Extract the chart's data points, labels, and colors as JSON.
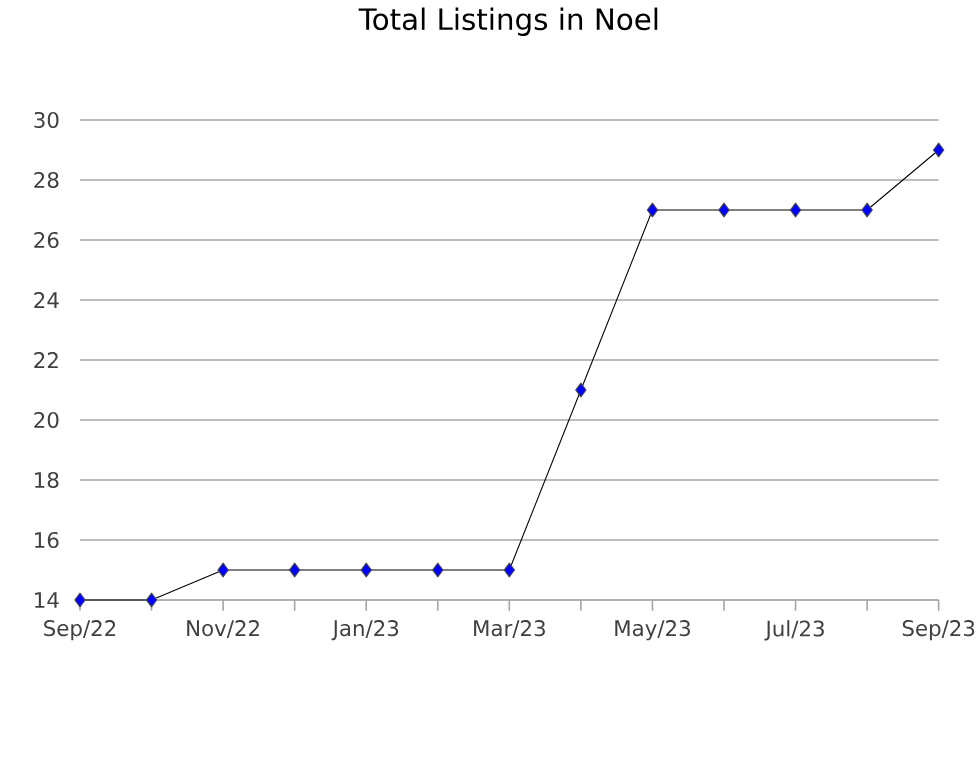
{
  "chart_data": {
    "type": "line",
    "title": "Total Listings in Noel",
    "x": [
      "2022-09",
      "2022-10",
      "2022-11",
      "2022-12",
      "2023-01",
      "2023-02",
      "2023-03",
      "2023-04",
      "2023-05",
      "2023-06",
      "2023-07",
      "2023-08",
      "2023-09"
    ],
    "series": [
      {
        "color": "#0000ff",
        "values": [
          14,
          14,
          15,
          15,
          15,
          15,
          15,
          21,
          27,
          27,
          27,
          27,
          29
        ]
      }
    ],
    "marker": "diamond",
    "line_style": "solid",
    "grid": "y",
    "xlim": [
      "2022-09",
      "2023-09"
    ],
    "xticks": [
      {
        "value": "2022-09",
        "label": "Sep/22"
      },
      {
        "value": "2022-10",
        "label": null
      },
      {
        "value": "2022-11",
        "label": "Nov/22"
      },
      {
        "value": "2022-12",
        "label": null
      },
      {
        "value": "2023-01",
        "label": "Jan/23"
      },
      {
        "value": "2023-02",
        "label": null
      },
      {
        "value": "2023-03",
        "label": "Mar/23"
      },
      {
        "value": "2023-04",
        "label": null
      },
      {
        "value": "2023-05",
        "label": "May/23"
      },
      {
        "value": "2023-06",
        "label": null
      },
      {
        "value": "2023-07",
        "label": "Jul/23"
      },
      {
        "value": "2023-08",
        "label": null
      },
      {
        "value": "2023-09",
        "label": "Sep/23"
      }
    ],
    "ylim": [
      14,
      30
    ],
    "yticks": [
      14,
      16,
      18,
      20,
      22,
      24,
      26,
      28,
      30
    ]
  }
}
